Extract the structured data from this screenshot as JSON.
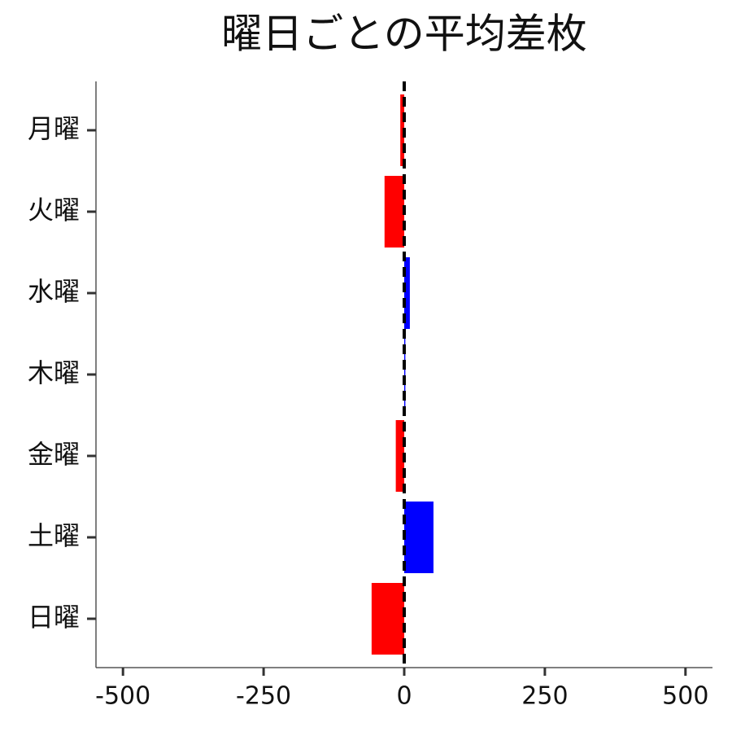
{
  "chart_data": {
    "type": "barh",
    "title": "曜日ごとの平均差枚",
    "categories": [
      "月曜",
      "火曜",
      "水曜",
      "木曜",
      "金曜",
      "土曜",
      "日曜"
    ],
    "values": [
      -7,
      -35,
      10,
      2,
      -15,
      52,
      -58
    ],
    "colors": [
      "#ff0000",
      "#ff0000",
      "#0000ff",
      "#0000ff",
      "#ff0000",
      "#0000ff",
      "#ff0000"
    ],
    "xlim": [
      -548,
      548
    ],
    "xticks": [
      -500,
      -250,
      0,
      250,
      500
    ],
    "reference_line": 0
  }
}
